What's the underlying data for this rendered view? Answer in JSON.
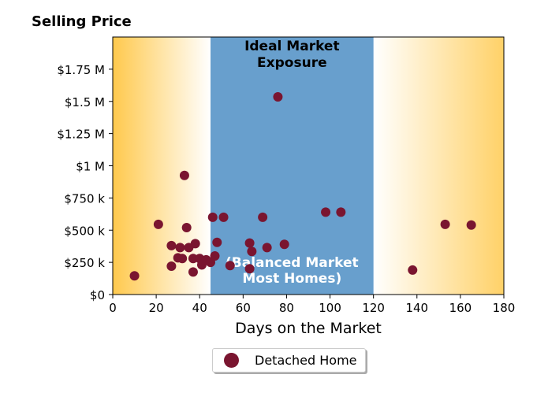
{
  "chart_data": {
    "type": "scatter",
    "ylabel": "Selling Price",
    "xlabel": "Days on the Market",
    "xlim": [
      0,
      180
    ],
    "ylim": [
      0,
      2000000
    ],
    "x_ticks": [
      0,
      20,
      40,
      60,
      80,
      100,
      120,
      140,
      160,
      180
    ],
    "x_tick_labels": [
      "0",
      "20",
      "40",
      "60",
      "80",
      "100",
      "120",
      "140",
      "160",
      "180"
    ],
    "y_ticks": [
      0,
      250000,
      500000,
      750000,
      1000000,
      1250000,
      1500000,
      1750000
    ],
    "y_tick_labels": [
      "$0",
      "$250 k",
      "$500 k",
      "$750 k",
      "$1 M",
      "$1.25 M",
      "$1.5 M",
      "$1.75 M"
    ],
    "grid": false,
    "legend_position": "below-center",
    "regions": [
      {
        "x_start": 0,
        "x_end": 45,
        "style": "gradient",
        "color": "#ffc94d"
      },
      {
        "x_start": 45,
        "x_end": 120,
        "style": "solid",
        "color": "#689fcd",
        "labels": [
          "Ideal Market Exposure",
          "(Balanced Market Most Homes)"
        ]
      },
      {
        "x_start": 120,
        "x_end": 180,
        "style": "gradient",
        "color": "#ffc94d"
      }
    ],
    "annotations": {
      "top_line1": "Ideal Market",
      "top_line2": "Exposure",
      "bottom_line1": "(Balanced Market",
      "bottom_line2": "Most Homes)"
    },
    "series": [
      {
        "name": "Detached Home",
        "color": "#7a1530",
        "points": [
          [
            10,
            145000
          ],
          [
            21,
            545000
          ],
          [
            27,
            380000
          ],
          [
            27,
            220000
          ],
          [
            30,
            285000
          ],
          [
            31,
            365000
          ],
          [
            32,
            280000
          ],
          [
            33,
            925000
          ],
          [
            34,
            520000
          ],
          [
            35,
            365000
          ],
          [
            37,
            280000
          ],
          [
            37,
            175000
          ],
          [
            38,
            395000
          ],
          [
            40,
            280000
          ],
          [
            41,
            230000
          ],
          [
            43,
            270000
          ],
          [
            45,
            250000
          ],
          [
            46,
            600000
          ],
          [
            47,
            300000
          ],
          [
            48,
            405000
          ],
          [
            51,
            600000
          ],
          [
            54,
            225000
          ],
          [
            63,
            400000
          ],
          [
            63,
            200000
          ],
          [
            64,
            335000
          ],
          [
            69,
            600000
          ],
          [
            71,
            365000
          ],
          [
            76,
            1535000
          ],
          [
            79,
            390000
          ],
          [
            98,
            640000
          ],
          [
            105,
            640000
          ],
          [
            138,
            190000
          ],
          [
            153,
            545000
          ],
          [
            165,
            540000
          ]
        ]
      }
    ]
  }
}
